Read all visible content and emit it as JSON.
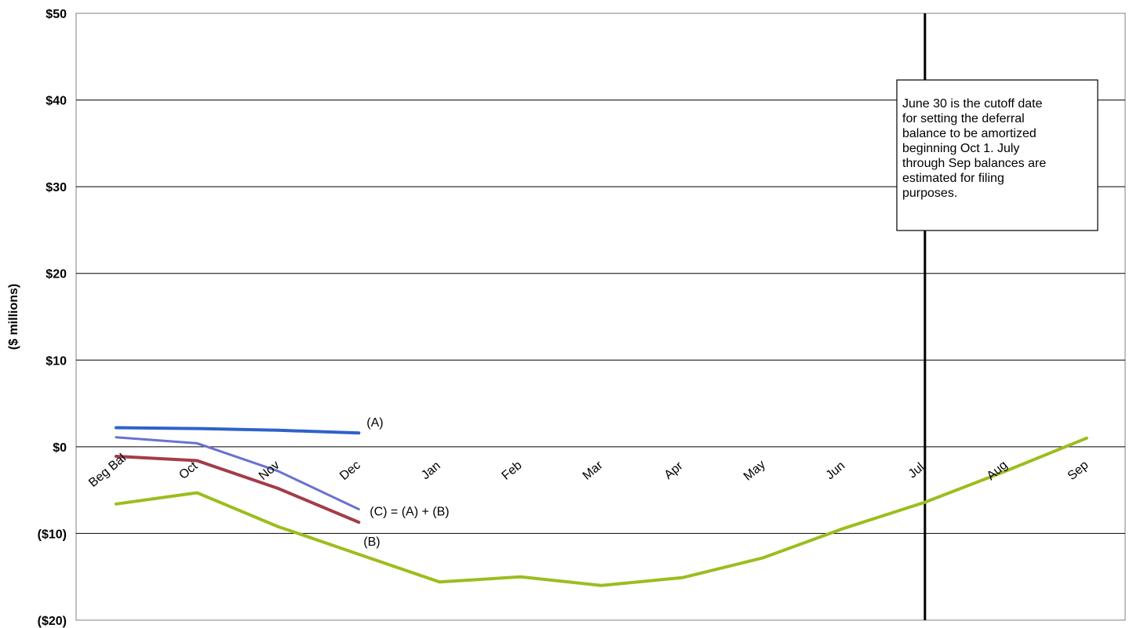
{
  "chart_data": {
    "type": "line",
    "title": "",
    "xlabel": "",
    "ylabel": "($ millions)",
    "ylim": [
      -20,
      50
    ],
    "yticks": [
      50,
      40,
      30,
      20,
      10,
      0,
      -10,
      -20
    ],
    "ytick_labels": [
      "$50",
      "$40",
      "$30",
      "$20",
      "$10",
      "$0",
      "($10)",
      "($20)"
    ],
    "categories": [
      "Beg Bal",
      "Oct",
      "Nov",
      "Dec",
      "Jan",
      "Feb",
      "Mar",
      "Apr",
      "May",
      "Jun",
      "Jul",
      "Aug",
      "Sep"
    ],
    "grid": true,
    "legend": "none",
    "series": [
      {
        "label": "(A)",
        "color": "#2f62c9",
        "values": [
          2.2,
          2.1,
          1.9,
          1.6,
          null,
          null,
          null,
          null,
          null,
          null,
          null,
          null,
          null
        ]
      },
      {
        "label": "(C) = (A) + (B)",
        "color": "#6a72cf",
        "values": [
          1.1,
          0.4,
          -2.8,
          -7.2,
          null,
          null,
          null,
          null,
          null,
          null,
          null,
          null,
          null
        ]
      },
      {
        "label": "(B)",
        "color": "#a23d48",
        "values": [
          -1.1,
          -1.6,
          -4.8,
          -8.7,
          null,
          null,
          null,
          null,
          null,
          null,
          null,
          null,
          null
        ]
      },
      {
        "label": "",
        "color": "#9cbd1e",
        "values": [
          -6.6,
          -5.3,
          -9.2,
          -12.4,
          -15.6,
          -15.0,
          -16.0,
          -15.1,
          -12.8,
          -9.4,
          -6.4,
          -2.8,
          1.0
        ]
      }
    ],
    "cutoff_line": {
      "category": "Jul"
    },
    "annotation": {
      "lines": [
        "June 30 is the cutoff date",
        "for setting the deferral",
        "balance to be amortized",
        "beginning Oct 1.  July",
        "through Sep balances are",
        "estimated for filing",
        "purposes."
      ]
    }
  }
}
